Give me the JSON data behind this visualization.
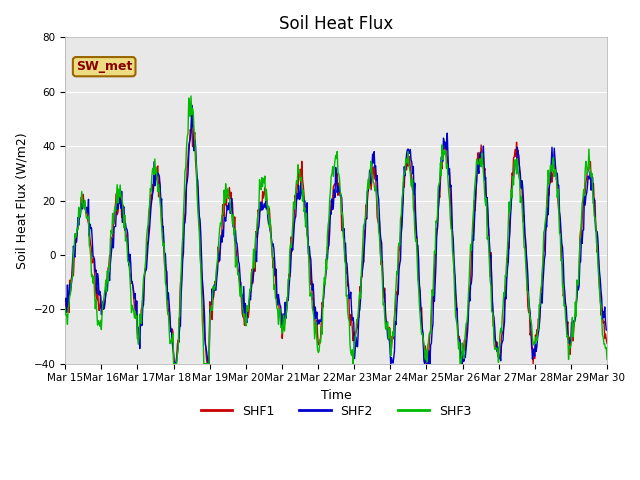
{
  "title": "Soil Heat Flux",
  "ylabel": "Soil Heat Flux (W/m2)",
  "xlabel": "Time",
  "ylim": [
    -40,
    80
  ],
  "yticks": [
    -40,
    -20,
    0,
    20,
    40,
    60,
    80
  ],
  "xtick_labels": [
    "Mar 15",
    "Mar 16",
    "Mar 17",
    "Mar 18",
    "Mar 19",
    "Mar 20",
    "Mar 21",
    "Mar 22",
    "Mar 23",
    "Mar 24",
    "Mar 25",
    "Mar 26",
    "Mar 27",
    "Mar 28",
    "Mar 29",
    "Mar 30"
  ],
  "shf1_color": "#cc0000",
  "shf2_color": "#0000cc",
  "shf3_color": "#00bb00",
  "annotation_text": "SW_met",
  "annotation_fg": "#880000",
  "annotation_bg": "#eedc82",
  "annotation_border": "#996600",
  "bg_color": "#e8e8e8",
  "grid_color": "#ffffff",
  "title_fontsize": 12,
  "label_fontsize": 9,
  "tick_fontsize": 7.5,
  "legend_fontsize": 9,
  "n_days": 15,
  "n_per_day": 48
}
